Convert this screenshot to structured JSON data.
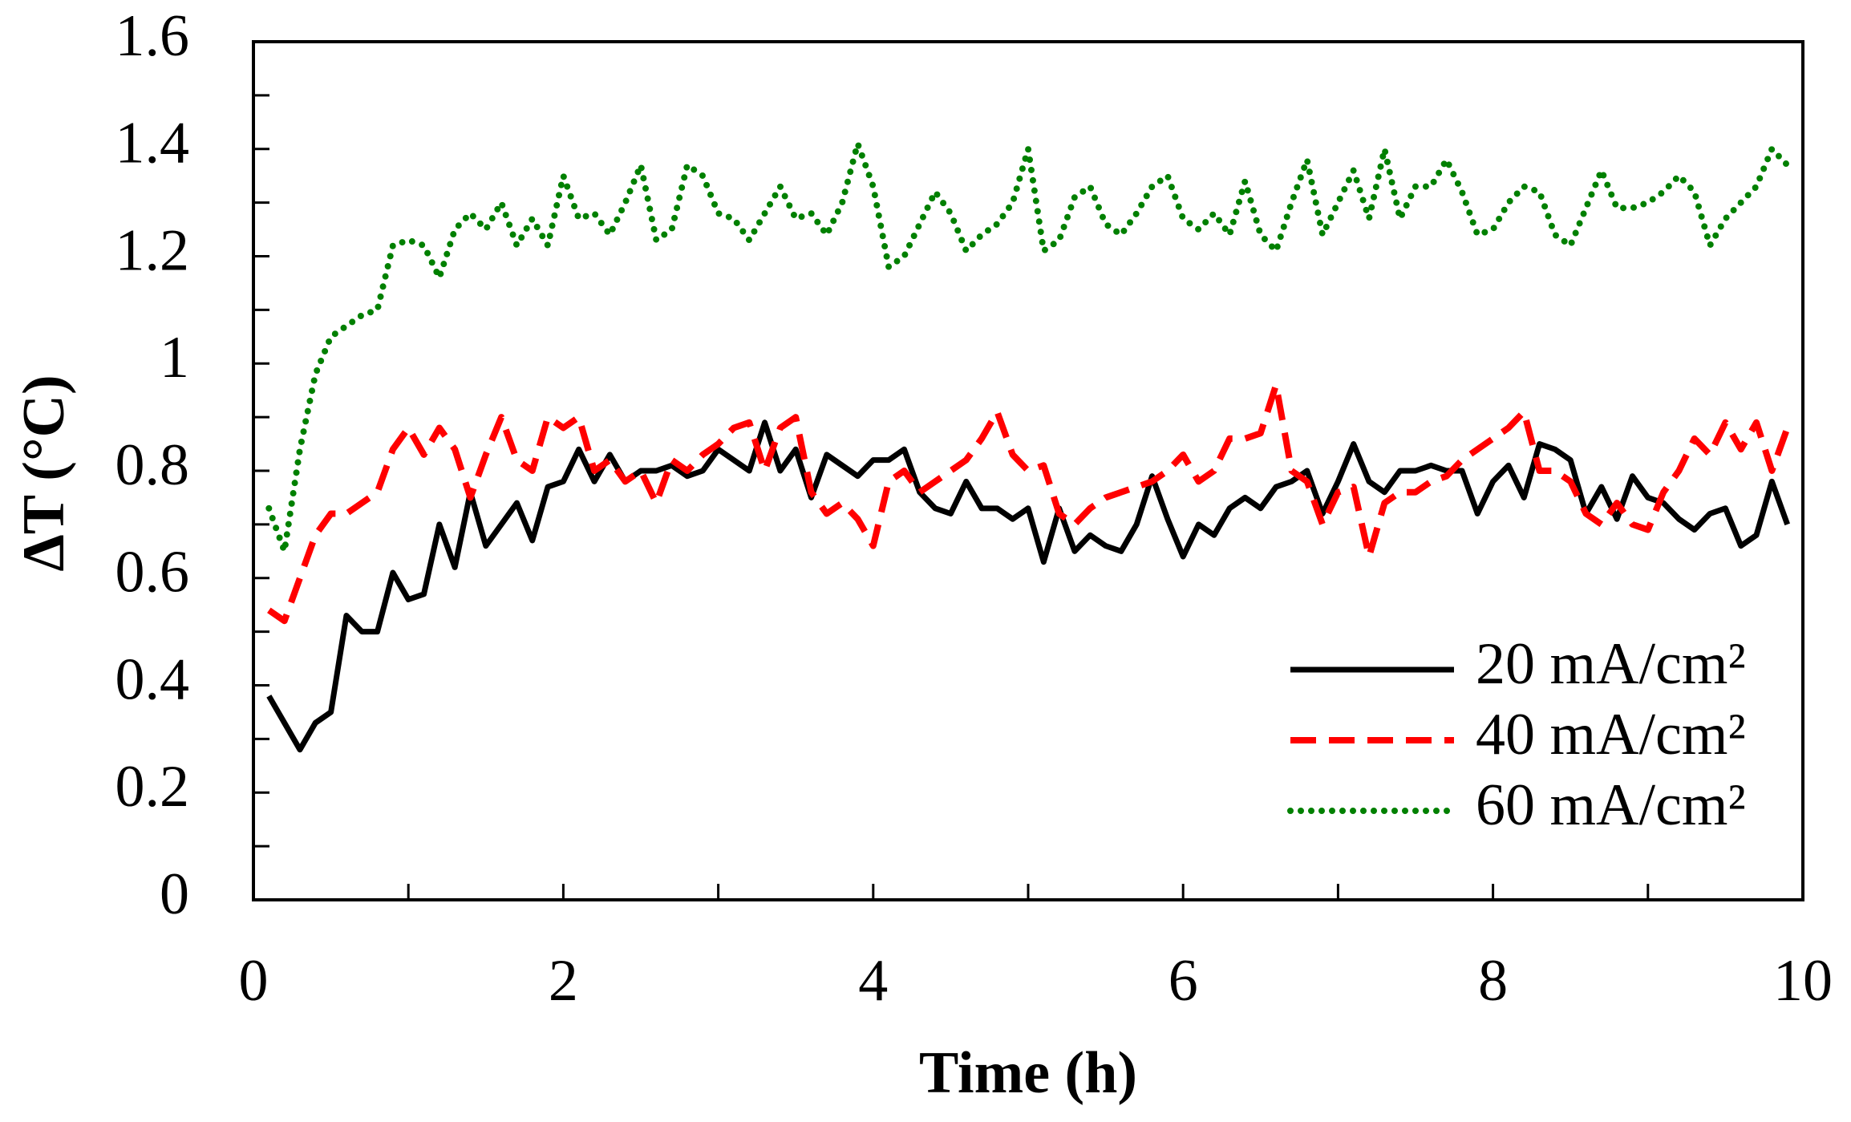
{
  "chart_data": {
    "type": "line",
    "xlabel": "Time (h)",
    "ylabel": "ΔT (°C)",
    "x": [
      0.1,
      0.2,
      0.3,
      0.4,
      0.5,
      0.6,
      0.7,
      0.8,
      0.9,
      1.0,
      1.1,
      1.2,
      1.3,
      1.4,
      1.5,
      1.6,
      1.7,
      1.8,
      1.9,
      2.0,
      2.1,
      2.2,
      2.3,
      2.4,
      2.5,
      2.6,
      2.7,
      2.8,
      2.9,
      3.0,
      3.1,
      3.2,
      3.3,
      3.4,
      3.5,
      3.6,
      3.7,
      3.8,
      3.9,
      4.0,
      4.1,
      4.2,
      4.3,
      4.4,
      4.5,
      4.6,
      4.7,
      4.8,
      4.9,
      5.0,
      5.1,
      5.2,
      5.3,
      5.4,
      5.5,
      5.6,
      5.7,
      5.8,
      5.9,
      6.0,
      6.1,
      6.2,
      6.3,
      6.4,
      6.5,
      6.6,
      6.7,
      6.8,
      6.9,
      7.0,
      7.1,
      7.2,
      7.3,
      7.4,
      7.5,
      7.6,
      7.7,
      7.8,
      7.9,
      8.0,
      8.1,
      8.2,
      8.3,
      8.4,
      8.5,
      8.6,
      8.7,
      8.8,
      8.9,
      9.0,
      9.1,
      9.2,
      9.3,
      9.4,
      9.5,
      9.6,
      9.7,
      9.8,
      9.9
    ],
    "series": [
      {
        "name": "20 mA/cm²",
        "color": "#000000",
        "style": "solid",
        "values": [
          0.38,
          0.33,
          0.28,
          0.33,
          0.35,
          0.53,
          0.5,
          0.5,
          0.61,
          0.56,
          0.57,
          0.7,
          0.62,
          0.76,
          0.66,
          0.7,
          0.74,
          0.67,
          0.77,
          0.78,
          0.84,
          0.78,
          0.83,
          0.78,
          0.8,
          0.8,
          0.81,
          0.79,
          0.8,
          0.84,
          0.82,
          0.8,
          0.89,
          0.8,
          0.84,
          0.75,
          0.83,
          0.81,
          0.79,
          0.82,
          0.82,
          0.84,
          0.76,
          0.73,
          0.72,
          0.78,
          0.73,
          0.73,
          0.71,
          0.73,
          0.63,
          0.73,
          0.65,
          0.68,
          0.66,
          0.65,
          0.7,
          0.79,
          0.71,
          0.64,
          0.7,
          0.68,
          0.73,
          0.75,
          0.73,
          0.77,
          0.78,
          0.8,
          0.72,
          0.78,
          0.85,
          0.78,
          0.76,
          0.8,
          0.8,
          0.81,
          0.8,
          0.8,
          0.72,
          0.78,
          0.81,
          0.75,
          0.85,
          0.84,
          0.82,
          0.72,
          0.77,
          0.71,
          0.79,
          0.75,
          0.74,
          0.71,
          0.69,
          0.72,
          0.73,
          0.66,
          0.68,
          0.78,
          0.7
        ]
      },
      {
        "name": "40 mA/cm²",
        "color": "#ff0000",
        "style": "dashed",
        "values": [
          0.54,
          0.52,
          0.6,
          0.68,
          0.72,
          0.72,
          0.74,
          0.76,
          0.84,
          0.88,
          0.83,
          0.88,
          0.84,
          0.75,
          0.83,
          0.9,
          0.82,
          0.8,
          0.9,
          0.88,
          0.9,
          0.8,
          0.82,
          0.78,
          0.8,
          0.74,
          0.82,
          0.8,
          0.83,
          0.85,
          0.88,
          0.89,
          0.8,
          0.88,
          0.9,
          0.76,
          0.72,
          0.74,
          0.71,
          0.66,
          0.78,
          0.8,
          0.76,
          0.78,
          0.8,
          0.82,
          0.86,
          0.91,
          0.83,
          0.8,
          0.81,
          0.72,
          0.7,
          0.73,
          0.75,
          0.76,
          0.77,
          0.78,
          0.8,
          0.83,
          0.78,
          0.8,
          0.86,
          0.86,
          0.87,
          0.96,
          0.8,
          0.78,
          0.7,
          0.76,
          0.77,
          0.64,
          0.74,
          0.76,
          0.76,
          0.78,
          0.79,
          0.82,
          0.84,
          0.86,
          0.88,
          0.91,
          0.8,
          0.8,
          0.78,
          0.72,
          0.7,
          0.74,
          0.7,
          0.69,
          0.76,
          0.8,
          0.86,
          0.83,
          0.89,
          0.84,
          0.89,
          0.8,
          0.88
        ]
      },
      {
        "name": "60 mA/cm²",
        "color": "#008000",
        "style": "dotted",
        "values": [
          0.73,
          0.65,
          0.84,
          0.98,
          1.05,
          1.07,
          1.09,
          1.1,
          1.22,
          1.23,
          1.22,
          1.16,
          1.25,
          1.28,
          1.25,
          1.3,
          1.22,
          1.27,
          1.22,
          1.35,
          1.27,
          1.28,
          1.24,
          1.3,
          1.37,
          1.23,
          1.25,
          1.37,
          1.35,
          1.28,
          1.27,
          1.23,
          1.28,
          1.33,
          1.27,
          1.28,
          1.24,
          1.3,
          1.41,
          1.33,
          1.18,
          1.2,
          1.26,
          1.32,
          1.28,
          1.21,
          1.24,
          1.26,
          1.3,
          1.4,
          1.21,
          1.23,
          1.31,
          1.33,
          1.26,
          1.24,
          1.28,
          1.33,
          1.35,
          1.27,
          1.25,
          1.28,
          1.24,
          1.34,
          1.24,
          1.21,
          1.3,
          1.38,
          1.24,
          1.3,
          1.36,
          1.27,
          1.4,
          1.27,
          1.33,
          1.33,
          1.38,
          1.32,
          1.24,
          1.25,
          1.3,
          1.33,
          1.32,
          1.24,
          1.22,
          1.29,
          1.36,
          1.29,
          1.29,
          1.3,
          1.32,
          1.35,
          1.32,
          1.22,
          1.27,
          1.3,
          1.33,
          1.4,
          1.37
        ]
      }
    ],
    "xlim": [
      0,
      10
    ],
    "xticks": [
      0,
      2,
      4,
      6,
      8,
      10
    ],
    "xminorticks": [
      1,
      3,
      5,
      7,
      9
    ],
    "ylim": [
      0,
      1.6
    ],
    "yticks": [
      0,
      0.2,
      0.4,
      0.6,
      0.8,
      1,
      1.2,
      1.4,
      1.6
    ],
    "yminorticks": [
      0.1,
      0.3,
      0.5,
      0.7,
      0.9,
      1.1,
      1.3,
      1.5
    ],
    "grid": false,
    "legend": "lower right"
  }
}
